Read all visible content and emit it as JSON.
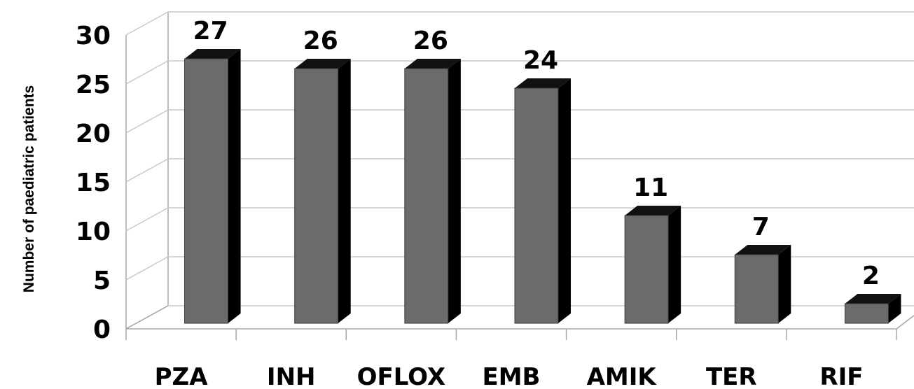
{
  "chart_data": {
    "type": "bar",
    "title": "",
    "xlabel": "",
    "ylabel": "Number of paediatric patients",
    "categories": [
      "PZA",
      "INH",
      "OFLOX",
      "EMB",
      "AMIK",
      "TER",
      "RIF"
    ],
    "values": [
      27,
      26,
      26,
      24,
      11,
      7,
      2
    ],
    "ylim": [
      0,
      30
    ],
    "yticks": [
      "0",
      "5",
      "10",
      "15",
      "20",
      "25",
      "30"
    ],
    "data_labels": [
      "27",
      "26",
      "26",
      "24",
      "11",
      "7",
      "2"
    ],
    "grid": true,
    "legend": "none",
    "style": "3d-column",
    "colors": {
      "bar_front": "#6b6b6b",
      "bar_side": "#000000",
      "bar_top": "#111111",
      "gridline": "#c8c8c8",
      "axis": "#a6a6a6"
    }
  }
}
